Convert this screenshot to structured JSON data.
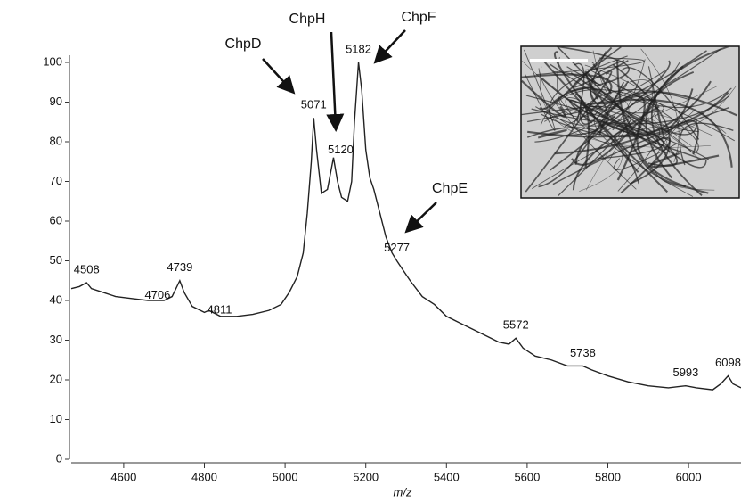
{
  "chart_data": {
    "type": "line",
    "xlabel": "m/z",
    "xlim": [
      4470,
      6130
    ],
    "ylim": [
      0,
      100
    ],
    "xticks": [
      4600,
      4800,
      5000,
      5200,
      5400,
      5600,
      5800,
      6000
    ],
    "yticks": [
      0,
      10,
      20,
      30,
      40,
      50,
      60,
      70,
      80,
      90,
      100
    ],
    "grid": false,
    "x": [
      4470,
      4490,
      4508,
      4520,
      4550,
      4580,
      4620,
      4660,
      4700,
      4720,
      4739,
      4750,
      4770,
      4800,
      4811,
      4840,
      4880,
      4920,
      4960,
      4990,
      5010,
      5030,
      5045,
      5055,
      5065,
      5071,
      5078,
      5090,
      5105,
      5120,
      5130,
      5140,
      5155,
      5165,
      5172,
      5182,
      5190,
      5200,
      5210,
      5220,
      5235,
      5250,
      5265,
      5277,
      5290,
      5310,
      5340,
      5370,
      5400,
      5430,
      5460,
      5500,
      5530,
      5555,
      5572,
      5590,
      5620,
      5660,
      5700,
      5738,
      5760,
      5800,
      5850,
      5900,
      5950,
      5993,
      6020,
      6060,
      6080,
      6098,
      6110,
      6130
    ],
    "series": [
      {
        "color": "#222222",
        "values": [
          43,
          43.5,
          44.5,
          43,
          42,
          41,
          40.5,
          40,
          40,
          41,
          45,
          42,
          38.5,
          37,
          37.5,
          36,
          36,
          36.5,
          37.5,
          39,
          42,
          46,
          52,
          62,
          75,
          86,
          78,
          67,
          68,
          76,
          70,
          66,
          65,
          70,
          85,
          100,
          93,
          78,
          71,
          68,
          62,
          56,
          52,
          50,
          48,
          45,
          41,
          39,
          36,
          34.5,
          33,
          31,
          29.5,
          29,
          30.5,
          28,
          26,
          25,
          23.5,
          23.5,
          22.5,
          21,
          19.5,
          18.5,
          18,
          18.5,
          18,
          17.5,
          19,
          21,
          19,
          18
        ]
      }
    ],
    "peak_labels": [
      4508,
      4706,
      4739,
      4811,
      5071,
      5120,
      5182,
      5277,
      5572,
      5738,
      5993,
      6098
    ],
    "annotations": [
      "ChpD",
      "ChpH",
      "ChpF",
      "ChpE"
    ]
  }
}
